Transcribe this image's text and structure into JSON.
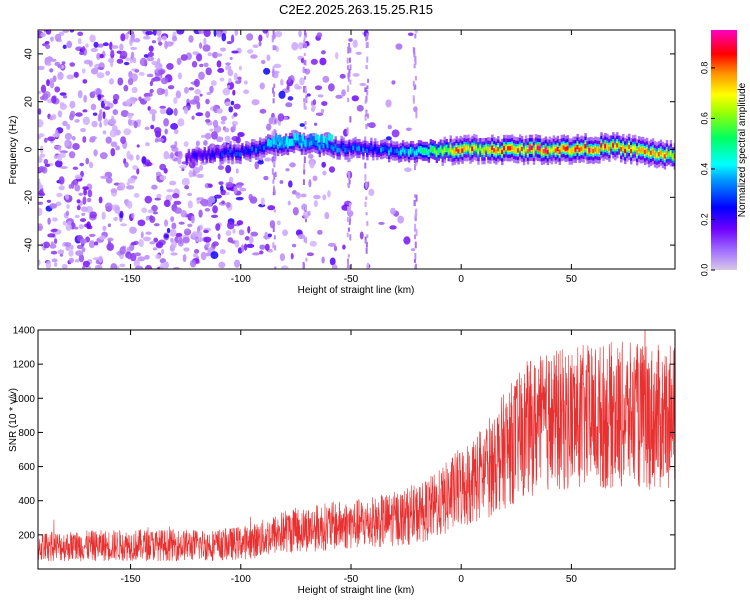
{
  "colors": {
    "snr_line": "#e83030",
    "colormap_stops": [
      "#f2f2f2",
      "#e0c8ff",
      "#b380ff",
      "#8a2be2",
      "#6f00ff",
      "#0000ff",
      "#00ffff",
      "#00ff00",
      "#ffff00",
      "#ff8000",
      "#ff0000",
      "#ff00ff"
    ]
  },
  "chart_data": [
    {
      "type": "heatmap",
      "title": "C2E2.2025.263.15.25.R15",
      "xlabel": "Height of straight line (km)",
      "ylabel": "Frequency (Hz)",
      "xlim": [
        -192,
        97
      ],
      "ylim": [
        -50,
        50
      ],
      "xticks": [
        -150,
        -100,
        -50,
        0,
        50
      ],
      "xtick_labels": [
        "-150",
        "-100",
        "-50",
        "0",
        "50"
      ],
      "yticks": [
        -40,
        -20,
        0,
        20,
        40
      ],
      "ytick_labels": [
        "-40",
        "-20",
        "0",
        "20",
        "40"
      ],
      "colorbar": {
        "label": "Normalized spectral amplitude",
        "range": [
          0.0,
          0.95
        ],
        "ticks": [
          0.0,
          0.2,
          0.4,
          0.6,
          0.8
        ],
        "tick_labels": [
          "0.0",
          "0.2",
          "0.4",
          "0.6",
          "0.8"
        ]
      },
      "ridge": {
        "description_points_x": [
          -125,
          -100,
          -85,
          -75,
          -60,
          -40,
          -20,
          0,
          25,
          50,
          70,
          97
        ],
        "center_freq": [
          -3,
          -1,
          2,
          3,
          1,
          0,
          -1,
          0,
          0,
          0,
          1,
          -3
        ],
        "peak_amplitude": [
          0.25,
          0.35,
          0.4,
          0.45,
          0.4,
          0.35,
          0.5,
          0.85,
          0.9,
          0.95,
          0.85,
          0.8
        ]
      },
      "noise_extent_x": [
        -192,
        -20
      ]
    },
    {
      "type": "line",
      "xlabel": "Height of straight line (km)",
      "ylabel": "SNR (10 * v/v)",
      "xlim": [
        -192,
        97
      ],
      "ylim": [
        0,
        1400
      ],
      "xticks": [
        -150,
        -100,
        -50,
        0,
        50
      ],
      "xtick_labels": [
        "-150",
        "-100",
        "-50",
        "0",
        "50"
      ],
      "yticks": [
        200,
        400,
        600,
        800,
        1000,
        1200,
        1400
      ],
      "ytick_labels": [
        "200",
        "400",
        "600",
        "800",
        "1000",
        "1200",
        "1400"
      ],
      "trend": {
        "x": [
          -192,
          -150,
          -110,
          -95,
          -80,
          -60,
          -40,
          -20,
          -10,
          0,
          10,
          20,
          30,
          40,
          50,
          70,
          97
        ],
        "y": [
          130,
          140,
          140,
          160,
          220,
          250,
          270,
          320,
          380,
          480,
          560,
          700,
          820,
          860,
          880,
          900,
          880
        ]
      }
    }
  ]
}
